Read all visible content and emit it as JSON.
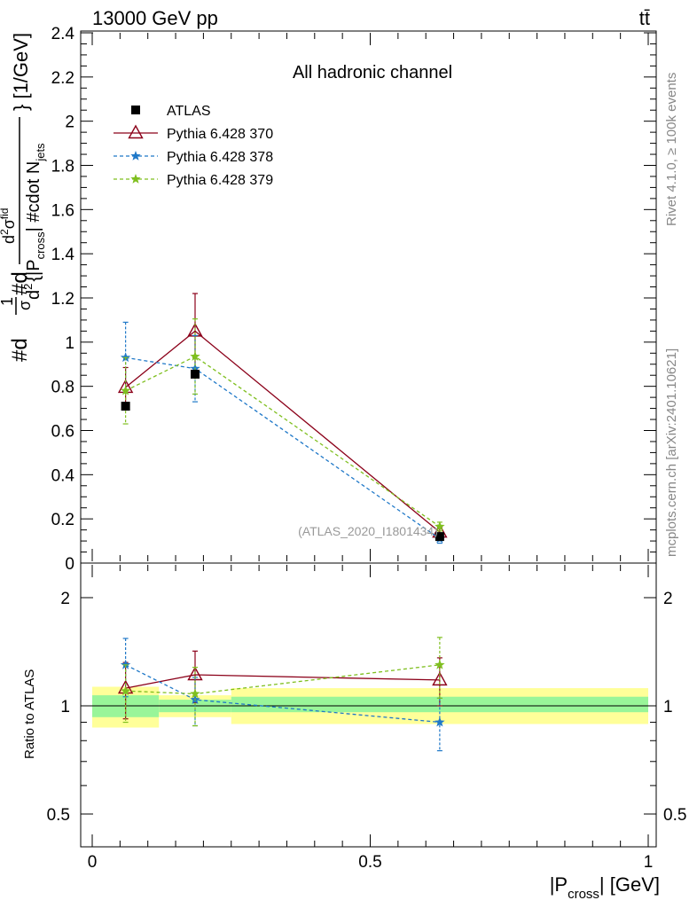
{
  "header": {
    "left": "13000 GeV pp",
    "right": "tt̄"
  },
  "side_text": {
    "rivet": "Rivet 4.1.0, ≥ 100k events",
    "mcplots": "mcplots.cern.ch [arXiv:2401.10621]"
  },
  "colors": {
    "atlas": "#000000",
    "p370": "#8b0019",
    "p378": "#1f78c8",
    "p379": "#7fbf1f",
    "band_inner": "#99f599",
    "band_outer": "#ffff99"
  },
  "chart_data": [
    {
      "type": "line",
      "title": "All hadronic channel",
      "watermark": "(ATLAS_2020_I1801434)",
      "xlabel": "|P_cross| [GeV]",
      "ylabel_parts": {
        "hash_d": "#d",
        "frac1_num": "1",
        "frac1_den": "σ",
        "hash_d2": "#d",
        "frac2_num_d": "d",
        "frac2_num_sup": "2",
        "frac2_num_sigma": "σ",
        "frac2_num_sub": "fid",
        "frac2_den_d": "d",
        "frac2_den_sup": "2",
        "frac2_den_open": "{|P",
        "frac2_den_sub": "cross",
        "frac2_den_close": "| #cdot N",
        "frac2_den_sub2": "jets",
        "tail": "} [1/GeV]"
      },
      "xlabel_parts": {
        "pre": "|P",
        "sub": "cross",
        "post": "| [GeV]"
      },
      "xlim": [
        -0.02,
        1.02
      ],
      "ylim": [
        0,
        2.4
      ],
      "y_ticks": [
        0,
        0.2,
        0.4,
        0.6,
        0.8,
        1,
        1.2,
        1.4,
        1.6,
        1.8,
        2,
        2.2,
        2.4
      ],
      "y_tick_labels": [
        "0",
        "0.2",
        "0.4",
        "0.6",
        "0.8",
        "1",
        "1.2",
        "1.4",
        "1.6",
        "1.8",
        "2",
        "2.2",
        "2.4"
      ],
      "x_ticks": [
        0,
        0.5,
        1
      ],
      "x_tick_labels": [
        "0",
        "0.5",
        "1"
      ],
      "legend_position": "top-left",
      "series": [
        {
          "name": "ATLAS",
          "key": "atlas",
          "marker": "square",
          "x": [
            0.06,
            0.185,
            0.625
          ],
          "y": [
            0.71,
            0.855,
            0.12
          ],
          "yerr": [
            0.0,
            0.0,
            0.0
          ]
        },
        {
          "name": "Pythia 6.428 370",
          "key": "p370",
          "marker": "triangle",
          "dash": "solid",
          "x": [
            0.06,
            0.185,
            0.625
          ],
          "y": [
            0.795,
            1.05,
            0.14
          ],
          "yerr": [
            0.09,
            0.17,
            0.02
          ]
        },
        {
          "name": "Pythia 6.428 378",
          "key": "p378",
          "marker": "star",
          "dash": "dashed",
          "x": [
            0.06,
            0.185,
            0.625
          ],
          "y": [
            0.93,
            0.88,
            0.11
          ],
          "yerr": [
            0.16,
            0.15,
            0.02
          ]
        },
        {
          "name": "Pythia 6.428 379",
          "key": "p379",
          "marker": "star",
          "dash": "dashed",
          "x": [
            0.06,
            0.185,
            0.625
          ],
          "y": [
            0.78,
            0.935,
            0.165
          ],
          "yerr": [
            0.15,
            0.17,
            0.02
          ]
        }
      ]
    },
    {
      "type": "line",
      "ylabel": "Ratio to ATLAS",
      "scale": "log",
      "ylim": [
        0.4,
        2.5
      ],
      "y_ticks": [
        0.5,
        1,
        2
      ],
      "y_tick_labels": [
        "0.5",
        "1",
        "2"
      ],
      "bands": [
        {
          "x0": 0.0,
          "x1": 0.12,
          "inner": [
            0.93,
            1.07
          ],
          "outer": [
            0.87,
            1.13
          ]
        },
        {
          "x0": 0.12,
          "x1": 0.25,
          "inner": [
            0.96,
            1.04
          ],
          "outer": [
            0.93,
            1.07
          ]
        },
        {
          "x0": 0.25,
          "x1": 1.0,
          "inner": [
            0.96,
            1.06
          ],
          "outer": [
            0.89,
            1.12
          ]
        }
      ],
      "series": [
        {
          "name": "Pythia 6.428 370",
          "key": "p370",
          "marker": "triangle",
          "dash": "solid",
          "x": [
            0.06,
            0.185,
            0.625
          ],
          "y": [
            1.12,
            1.22,
            1.18
          ],
          "yerr": [
            0.2,
            0.2,
            0.18
          ]
        },
        {
          "name": "Pythia 6.428 378",
          "key": "p378",
          "marker": "star",
          "dash": "dashed",
          "x": [
            0.06,
            0.185,
            0.625
          ],
          "y": [
            1.3,
            1.04,
            0.9
          ],
          "yerr": [
            0.24,
            0.16,
            0.15
          ]
        },
        {
          "name": "Pythia 6.428 379",
          "key": "p379",
          "marker": "star",
          "dash": "dashed",
          "x": [
            0.06,
            0.185,
            0.625
          ],
          "y": [
            1.1,
            1.08,
            1.3
          ],
          "yerr": [
            0.2,
            0.2,
            0.25
          ]
        }
      ]
    }
  ]
}
